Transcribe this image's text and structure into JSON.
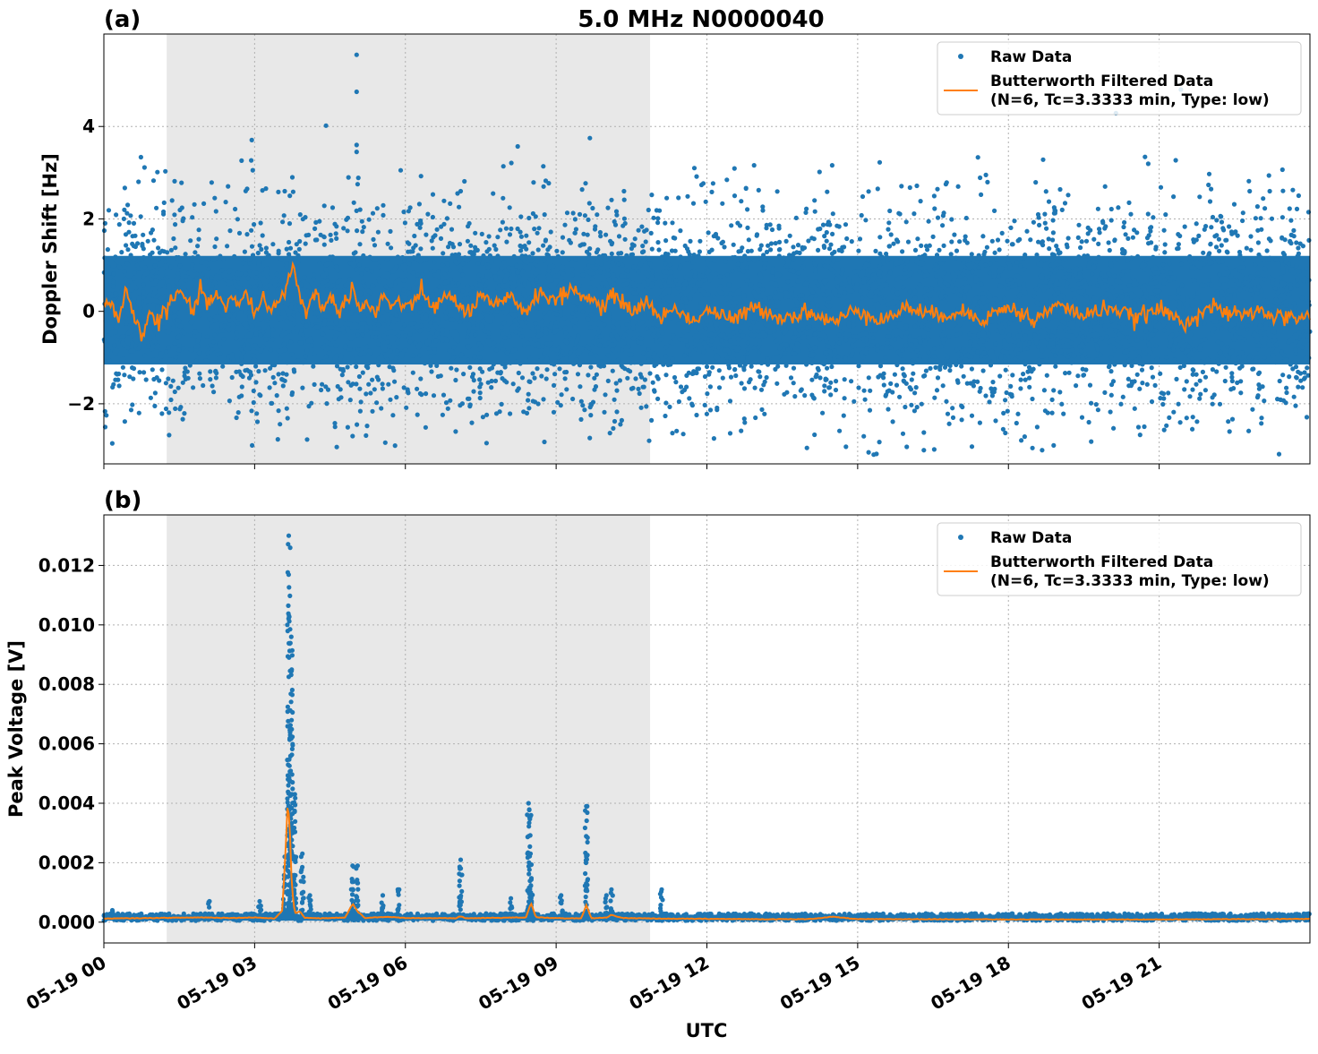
{
  "figure": {
    "title": "5.0 MHz N0000040",
    "xlabel": "UTC"
  },
  "legend": {
    "raw_label": "Raw Data",
    "filtered_label_line1": "Butterworth Filtered Data",
    "filtered_label_line2": "(N=6, Tc=3.3333 min, Type: low)"
  },
  "colors": {
    "raw": "#1f77b4",
    "filtered": "#ff7f0e",
    "shade": "#e8e8e8"
  },
  "chart_data": [
    {
      "type": "scatter",
      "panel_label": "(a)",
      "title": "5.0 MHz N0000040",
      "ylabel": "Doppler Shift [Hz]",
      "xlabel": "",
      "x_unit": "hours UTC 2024-05-19",
      "xlim": [
        0,
        24
      ],
      "ylim": [
        -3.3,
        6.0
      ],
      "yticks": [
        -2,
        0,
        2,
        4
      ],
      "ytick_labels": [
        "−2",
        "0",
        "2",
        "4"
      ],
      "grid": true,
      "legend_placement": "top-right",
      "shaded_interval": [
        1.25,
        10.87
      ],
      "series": [
        {
          "name": "Raw Data",
          "kind": "points",
          "band": {
            "low": -1.5,
            "high": 1.55
          },
          "outliers": [
            {
              "x": 5.03,
              "y": 5.55
            },
            {
              "x": 5.03,
              "y": 4.75
            },
            {
              "x": 5.03,
              "y": 3.6
            },
            {
              "x": 5.03,
              "y": 3.45
            },
            {
              "x": 5.05,
              "y": 2.75
            },
            {
              "x": 3.75,
              "y": 2.9
            },
            {
              "x": 2.85,
              "y": 2.65
            },
            {
              "x": 11.75,
              "y": 3.1
            },
            {
              "x": 8.75,
              "y": 2.7
            },
            {
              "x": 7.1,
              "y": 2.6
            },
            {
              "x": 10.35,
              "y": 2.6
            },
            {
              "x": 22.8,
              "y": 2.6
            },
            {
              "x": 23.2,
              "y": 2.6
            },
            {
              "x": 17.0,
              "y": 2.7
            },
            {
              "x": 15.4,
              "y": 2.65
            },
            {
              "x": 1.2,
              "y": 2.35
            },
            {
              "x": 11.2,
              "y": 2.45
            },
            {
              "x": 20.4,
              "y": 2.35
            },
            {
              "x": 2.95,
              "y": -2.9
            },
            {
              "x": 4.95,
              "y": -2.7
            },
            {
              "x": 10.85,
              "y": -2.8
            },
            {
              "x": 7.0,
              "y": -2.6
            },
            {
              "x": 18.9,
              "y": -2.9
            },
            {
              "x": 22.4,
              "y": -2.6
            },
            {
              "x": 4.6,
              "y": -2.5
            },
            {
              "x": 19.6,
              "y": -2.4
            },
            {
              "x": 0.05,
              "y": -2.25
            },
            {
              "x": 0.7,
              "y": -2.2
            },
            {
              "x": 3.6,
              "y": 2.6
            },
            {
              "x": 3.7,
              "y": 2.5
            },
            {
              "x": 5.1,
              "y": 2.2
            },
            {
              "x": 14.3,
              "y": -2.2
            },
            {
              "x": 16.9,
              "y": -2.3
            },
            {
              "x": 21.2,
              "y": -2.3
            }
          ]
        },
        {
          "name": "Butterworth Filtered Data\n(N=6, Tc=3.3333 min, Type: low)",
          "kind": "line",
          "x": [
            0.0,
            0.15,
            0.3,
            0.45,
            0.6,
            0.75,
            0.9,
            1.05,
            1.2,
            1.35,
            1.5,
            1.65,
            1.8,
            1.95,
            2.1,
            2.25,
            2.4,
            2.55,
            2.7,
            2.85,
            3.0,
            3.15,
            3.3,
            3.45,
            3.6,
            3.75,
            3.9,
            4.05,
            4.2,
            4.35,
            4.5,
            4.65,
            4.8,
            4.95,
            5.1,
            5.25,
            5.4,
            5.55,
            5.7,
            5.85,
            6.0,
            6.3,
            6.6,
            6.9,
            7.2,
            7.5,
            7.8,
            8.1,
            8.4,
            8.7,
            9.0,
            9.3,
            9.6,
            9.9,
            10.2,
            10.5,
            10.8,
            11.1,
            11.4,
            11.7,
            12.0,
            12.5,
            13.0,
            13.5,
            14.0,
            14.5,
            15.0,
            15.5,
            16.0,
            16.5,
            17.0,
            17.5,
            18.0,
            18.5,
            19.0,
            19.5,
            20.0,
            20.5,
            21.0,
            21.5,
            22.0,
            22.5,
            23.0,
            23.5,
            24.0
          ],
          "values": [
            0.1,
            0.2,
            -0.15,
            0.45,
            -0.1,
            -0.55,
            0.0,
            -0.3,
            0.05,
            0.15,
            0.45,
            0.2,
            0.0,
            0.5,
            0.1,
            0.45,
            0.0,
            0.3,
            0.1,
            0.45,
            -0.1,
            0.35,
            0.0,
            0.2,
            0.4,
            1.05,
            0.3,
            0.0,
            0.4,
            0.1,
            0.3,
            0.0,
            0.2,
            0.55,
            0.0,
            0.2,
            -0.1,
            0.35,
            0.1,
            0.25,
            0.0,
            0.4,
            0.1,
            0.35,
            -0.05,
            0.3,
            0.1,
            0.3,
            0.0,
            0.45,
            0.2,
            0.5,
            0.3,
            0.1,
            0.35,
            0.0,
            0.2,
            -0.15,
            0.1,
            -0.25,
            0.05,
            -0.2,
            0.1,
            -0.15,
            0.0,
            -0.25,
            0.05,
            -0.2,
            0.1,
            -0.1,
            0.0,
            -0.15,
            0.1,
            -0.2,
            0.15,
            -0.1,
            0.1,
            -0.15,
            0.05,
            -0.25,
            0.1,
            -0.1,
            0.0,
            -0.15,
            -0.1
          ]
        }
      ]
    },
    {
      "type": "scatter",
      "panel_label": "(b)",
      "title": "",
      "ylabel": "Peak Voltage [V]",
      "xlabel": "UTC",
      "x_unit": "hours UTC 2024-05-19",
      "xlim": [
        0,
        24
      ],
      "ylim": [
        -0.0007,
        0.0137
      ],
      "yticks": [
        0.0,
        0.002,
        0.004,
        0.006,
        0.008,
        0.01,
        0.012
      ],
      "ytick_labels": [
        "0.000",
        "0.002",
        "0.004",
        "0.006",
        "0.008",
        "0.010",
        "0.012"
      ],
      "xticks": [
        0,
        3,
        6,
        9,
        12,
        15,
        18,
        21
      ],
      "xtick_labels": [
        "05-19 00",
        "05-19 03",
        "05-19 06",
        "05-19 09",
        "05-19 12",
        "05-19 15",
        "05-19 18",
        "05-19 21"
      ],
      "grid": true,
      "legend_placement": "top-right",
      "shaded_interval": [
        1.25,
        10.87
      ],
      "series": [
        {
          "name": "Raw Data",
          "kind": "points",
          "baseline_band": {
            "low": 5e-05,
            "high": 0.00025
          },
          "spikes": [
            {
              "x": 0.17,
              "top": 0.0004
            },
            {
              "x": 2.1,
              "top": 0.0007
            },
            {
              "x": 3.1,
              "top": 0.0007
            },
            {
              "x": 3.6,
              "top": 0.0022
            },
            {
              "x": 3.68,
              "top": 0.013
            },
            {
              "x": 3.73,
              "top": 0.0096
            },
            {
              "x": 3.8,
              "top": 0.0043
            },
            {
              "x": 3.95,
              "top": 0.0023
            },
            {
              "x": 4.1,
              "top": 0.0009
            },
            {
              "x": 4.95,
              "top": 0.0019
            },
            {
              "x": 5.05,
              "top": 0.0019
            },
            {
              "x": 5.55,
              "top": 0.0009
            },
            {
              "x": 5.85,
              "top": 0.0011
            },
            {
              "x": 7.1,
              "top": 0.0021
            },
            {
              "x": 8.1,
              "top": 0.0008
            },
            {
              "x": 8.45,
              "top": 0.004
            },
            {
              "x": 8.5,
              "top": 0.0036
            },
            {
              "x": 9.1,
              "top": 0.0009
            },
            {
              "x": 9.6,
              "top": 0.0039
            },
            {
              "x": 10.0,
              "top": 0.0009
            },
            {
              "x": 10.1,
              "top": 0.0011
            },
            {
              "x": 11.1,
              "top": 0.0011
            }
          ]
        },
        {
          "name": "Butterworth Filtered Data\n(N=6, Tc=3.3333 min, Type: low)",
          "kind": "line",
          "x": [
            0.0,
            0.5,
            1.0,
            1.5,
            2.0,
            2.5,
            3.0,
            3.4,
            3.55,
            3.62,
            3.66,
            3.7,
            3.74,
            3.8,
            3.9,
            4.0,
            4.3,
            4.8,
            4.95,
            5.05,
            5.2,
            5.6,
            6.0,
            7.0,
            7.1,
            7.2,
            8.0,
            8.4,
            8.5,
            8.6,
            9.2,
            9.5,
            9.6,
            9.7,
            10.0,
            10.1,
            10.3,
            11.0,
            12.0,
            13.0,
            14.0,
            14.5,
            15.0,
            16.0,
            17.0,
            18.0,
            19.0,
            20.0,
            21.0,
            22.0,
            23.0,
            24.0
          ],
          "values": [
            0.00012,
            0.00013,
            0.00014,
            0.00015,
            0.00016,
            0.00014,
            0.00016,
            0.00012,
            0.0004,
            0.0025,
            0.0041,
            0.0032,
            0.0012,
            0.0003,
            0.00035,
            0.00015,
            0.00013,
            0.00015,
            0.00062,
            0.00035,
            0.00014,
            0.00018,
            0.00014,
            0.00013,
            0.0002,
            0.00013,
            0.00015,
            0.00016,
            0.00065,
            0.00016,
            0.00013,
            0.00013,
            0.00058,
            0.00013,
            0.00015,
            0.00025,
            0.00014,
            0.00012,
            0.00011,
            0.0001,
            0.0001,
            0.00018,
            0.0001,
            0.0001,
            0.0001,
            9e-05,
            9e-05,
            9e-05,
            9e-05,
            0.0001,
            0.0001,
            0.00011
          ]
        }
      ]
    }
  ]
}
